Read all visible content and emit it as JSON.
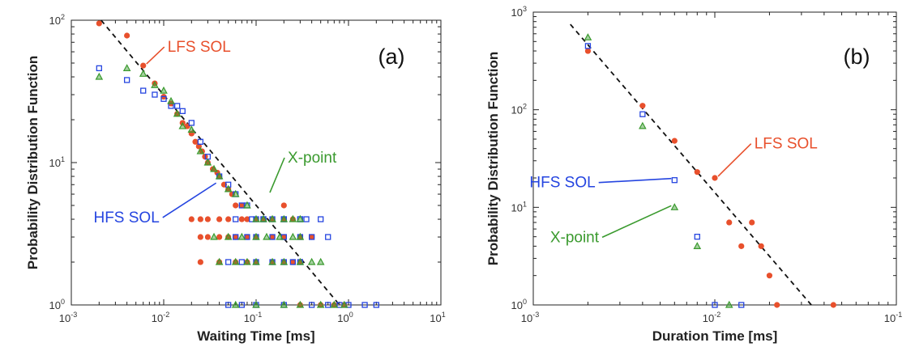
{
  "colors": {
    "lfs": "#e8502c",
    "hfs": "#2545e0",
    "xpoint": "#3a9a2e",
    "fit": "#111111"
  },
  "chart_data": [
    {
      "type": "scatter",
      "panel_label": "(a)",
      "xlabel": "Waiting Time [ms]",
      "ylabel": "Probability Distribution Function",
      "xscale": "log",
      "yscale": "log",
      "xlim": [
        0.001,
        10
      ],
      "ylim": [
        1,
        100
      ],
      "x_ticks": [
        {
          "base": "10",
          "exp": "-3"
        },
        {
          "base": "10",
          "exp": "-2"
        },
        {
          "base": "10",
          "exp": "-1"
        },
        {
          "base": "10",
          "exp": "0"
        },
        {
          "base": "10",
          "exp": "1"
        }
      ],
      "y_ticks": [
        {
          "base": "10",
          "exp": "0"
        },
        {
          "base": "10",
          "exp": "1"
        },
        {
          "base": "10",
          "exp": "2"
        }
      ],
      "fit_line": {
        "x": [
          0.0021,
          0.8
        ],
        "y": [
          100,
          1
        ]
      },
      "annotations": [
        {
          "text": "LFS SOL",
          "series": "LFS SOL",
          "point": [
            0.006,
            48
          ],
          "label_at": [
            0.011,
            60
          ]
        },
        {
          "text": "X-point",
          "series": "X-point",
          "point": [
            0.13,
            6
          ],
          "label_at": [
            0.22,
            10
          ]
        },
        {
          "text": "HFS SOL",
          "series": "HFS SOL",
          "point": [
            0.04,
            7
          ],
          "label_at": [
            0.009,
            3.8
          ]
        }
      ],
      "series": [
        {
          "name": "LFS SOL",
          "marker": "dot",
          "x": [
            0.002,
            0.004,
            0.006,
            0.008,
            0.01,
            0.012,
            0.014,
            0.016,
            0.018,
            0.02,
            0.022,
            0.024,
            0.026,
            0.028,
            0.03,
            0.034,
            0.038,
            0.04,
            0.045,
            0.05,
            0.055,
            0.06,
            0.07,
            0.08,
            0.1,
            0.12,
            0.15,
            0.2,
            0.025,
            0.03,
            0.04,
            0.05,
            0.06,
            0.08,
            0.1,
            0.15,
            0.2,
            0.025,
            0.04,
            0.06,
            0.08,
            0.1,
            0.15,
            0.2,
            0.25,
            0.3,
            0.02,
            0.025,
            0.03,
            0.04,
            0.05,
            0.07,
            0.1,
            0.15,
            0.2,
            0.25,
            0.3,
            0.4,
            0.3,
            0.5,
            0.7,
            0.9
          ],
          "y": [
            95,
            78,
            48,
            36,
            29,
            26,
            22,
            19,
            18,
            16,
            14,
            13,
            12,
            11,
            10,
            9,
            8.5,
            8,
            7,
            6.5,
            6,
            5,
            5,
            4,
            4,
            4,
            4,
            4,
            3,
            3,
            3,
            3,
            3,
            3,
            3,
            3,
            3,
            2,
            2,
            2,
            2,
            2,
            2,
            2,
            2,
            2,
            4,
            4,
            4,
            4,
            4,
            4,
            4,
            4,
            5,
            4,
            3,
            3,
            1,
            1,
            1,
            1
          ]
        },
        {
          "name": "HFS SOL",
          "marker": "square",
          "x": [
            0.002,
            0.004,
            0.006,
            0.008,
            0.01,
            0.012,
            0.014,
            0.016,
            0.02,
            0.025,
            0.03,
            0.04,
            0.05,
            0.06,
            0.07,
            0.08,
            0.1,
            0.12,
            0.15,
            0.2,
            0.3,
            0.5,
            0.06,
            0.08,
            0.1,
            0.15,
            0.2,
            0.3,
            0.4,
            0.6,
            0.05,
            0.07,
            0.1,
            0.15,
            0.2,
            0.25,
            0.3,
            0.06,
            0.09,
            0.12,
            0.2,
            0.3,
            0.35,
            0.05,
            0.07,
            0.1,
            0.2,
            0.4,
            0.6,
            0.8,
            1.0,
            1.5,
            2.0
          ],
          "y": [
            46,
            38,
            32,
            30,
            28,
            25,
            25,
            23,
            19,
            14,
            11,
            8,
            7,
            6,
            5,
            5,
            4,
            4,
            4,
            4,
            4,
            4,
            3,
            3,
            3,
            3,
            3,
            3,
            3,
            3,
            2,
            2,
            2,
            2,
            2,
            2,
            2,
            4,
            4,
            4,
            4,
            4,
            4,
            1,
            1,
            1,
            1,
            1,
            1,
            1,
            1,
            1,
            1
          ]
        },
        {
          "name": "X-point",
          "marker": "triangle",
          "x": [
            0.002,
            0.004,
            0.006,
            0.008,
            0.01,
            0.012,
            0.014,
            0.016,
            0.02,
            0.025,
            0.03,
            0.035,
            0.04,
            0.05,
            0.06,
            0.08,
            0.1,
            0.12,
            0.15,
            0.2,
            0.25,
            0.3,
            0.035,
            0.05,
            0.07,
            0.1,
            0.13,
            0.18,
            0.25,
            0.3,
            0.04,
            0.06,
            0.08,
            0.1,
            0.15,
            0.2,
            0.3,
            0.4,
            0.5,
            0.06,
            0.1,
            0.2,
            0.3,
            0.5,
            0.7,
            0.9
          ],
          "y": [
            40,
            46,
            42,
            35,
            32,
            27,
            22,
            18,
            17,
            12,
            10,
            9,
            8,
            6.5,
            6,
            5,
            4,
            4,
            4,
            4,
            4,
            4,
            3,
            3,
            3,
            3,
            3,
            3,
            3,
            3,
            2,
            2,
            2,
            2,
            2,
            2,
            2,
            2,
            2,
            1,
            1,
            1,
            1,
            1,
            1,
            1
          ]
        }
      ]
    },
    {
      "type": "scatter",
      "panel_label": "(b)",
      "xlabel": "Duration Time [ms]",
      "ylabel": "Probability Distribution Function",
      "xscale": "log",
      "yscale": "log",
      "xlim": [
        0.001,
        0.1
      ],
      "ylim": [
        1,
        1000
      ],
      "x_ticks": [
        {
          "base": "10",
          "exp": "-3"
        },
        {
          "base": "10",
          "exp": "-2"
        },
        {
          "base": "10",
          "exp": "-1"
        }
      ],
      "y_ticks": [
        {
          "base": "10",
          "exp": "0"
        },
        {
          "base": "10",
          "exp": "1"
        },
        {
          "base": "10",
          "exp": "2"
        },
        {
          "base": "10",
          "exp": "3"
        }
      ],
      "fit_line": {
        "x": [
          0.0016,
          0.034
        ],
        "y": [
          750,
          1
        ]
      },
      "annotations": [
        {
          "text": "LFS SOL",
          "series": "LFS SOL",
          "point": [
            0.01,
            20
          ],
          "label_at": [
            0.0165,
            40
          ]
        },
        {
          "text": "HFS SOL",
          "series": "HFS SOL",
          "point": [
            0.006,
            19
          ],
          "label_at": [
            0.0022,
            16
          ]
        },
        {
          "text": "X-point",
          "series": "X-point",
          "point": [
            0.006,
            10
          ],
          "label_at": [
            0.0023,
            4.4
          ]
        }
      ],
      "series": [
        {
          "name": "LFS SOL",
          "marker": "dot",
          "x": [
            0.002,
            0.004,
            0.006,
            0.008,
            0.01,
            0.012,
            0.014,
            0.016,
            0.018,
            0.02,
            0.022,
            0.045
          ],
          "y": [
            400,
            110,
            48,
            23,
            20,
            7,
            4,
            7,
            4,
            2,
            1,
            1
          ]
        },
        {
          "name": "HFS SOL",
          "marker": "square",
          "x": [
            0.002,
            0.004,
            0.006,
            0.008,
            0.01,
            0.014
          ],
          "y": [
            450,
            90,
            19,
            5,
            1,
            1
          ]
        },
        {
          "name": "X-point",
          "marker": "triangle",
          "x": [
            0.002,
            0.004,
            0.006,
            0.008,
            0.012
          ],
          "y": [
            550,
            68,
            10,
            4,
            1
          ]
        }
      ]
    }
  ]
}
